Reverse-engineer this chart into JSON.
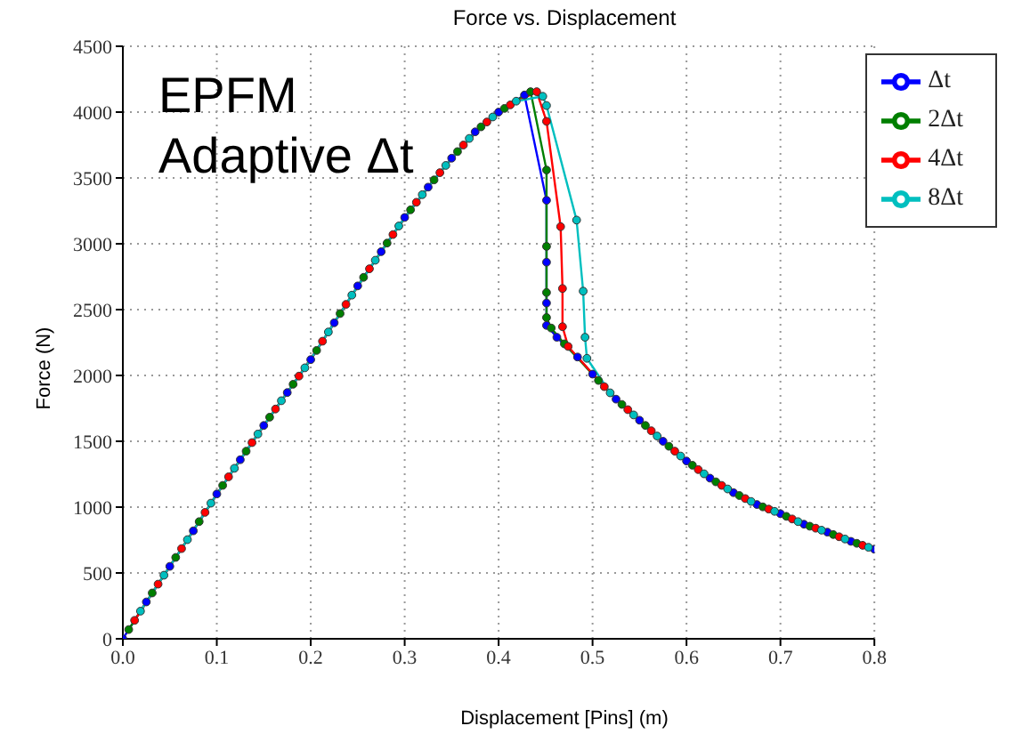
{
  "chart_data": {
    "type": "line",
    "title": "Force vs. Displacement",
    "xlabel": "Displacement [Pins] (m)",
    "ylabel": "Force (N)",
    "annotations": [
      "EPFM",
      "Adaptive Δt"
    ],
    "xlim": [
      0,
      0.8
    ],
    "xticks": [
      {
        "value": 0,
        "label": "0.0"
      },
      0.1,
      0.2,
      0.3,
      0.4,
      0.5,
      0.6,
      0.7,
      0.8
    ],
    "ylim": [
      0,
      4500
    ],
    "yticks": [
      0,
      500,
      1000,
      1500,
      2000,
      2500,
      3000,
      3500,
      4000,
      4500
    ],
    "grid": true,
    "legend": "top right",
    "marker": "circle",
    "line_style": "solid",
    "series": [
      {
        "name": "Δt",
        "color": "#0000ff",
        "x": [
          0,
          0.025,
          0.05,
          0.075,
          0.1,
          0.125,
          0.15,
          0.175,
          0.2,
          0.225,
          0.25,
          0.275,
          0.3,
          0.325,
          0.35,
          0.375,
          0.4,
          0.4275,
          0.451,
          0.451,
          0.451,
          0.451,
          0.462,
          0.484,
          0.5,
          0.525,
          0.55,
          0.575,
          0.6,
          0.625,
          0.65,
          0.675,
          0.7,
          0.725,
          0.75,
          0.775,
          0.8
        ],
        "values": [
          0,
          280,
          550,
          820,
          1100,
          1360,
          1620,
          1870,
          2120,
          2400,
          2680,
          2940,
          3200,
          3430,
          3650,
          3850,
          4000,
          4130,
          3330,
          2860,
          2550,
          2380,
          2290,
          2140,
          2010,
          1820,
          1660,
          1500,
          1350,
          1220,
          1110,
          1020,
          950,
          870,
          810,
          740,
          680
        ]
      },
      {
        "name": "2Δt",
        "color": "#007f00",
        "x": [
          0.00625,
          0.03125,
          0.05625,
          0.08125,
          0.10625,
          0.13125,
          0.15625,
          0.18125,
          0.20625,
          0.23125,
          0.25625,
          0.28125,
          0.30625,
          0.33125,
          0.35625,
          0.38125,
          0.40625,
          0.434,
          0.451,
          0.451,
          0.451,
          0.451,
          0.456,
          0.47,
          0.50625,
          0.53125,
          0.55625,
          0.58125,
          0.60625,
          0.63125,
          0.65625,
          0.68125,
          0.70625,
          0.73125,
          0.75625,
          0.78125
        ],
        "values": [
          70,
          348,
          618,
          890,
          1165,
          1425,
          1683,
          1933,
          2190,
          2470,
          2745,
          3005,
          3258,
          3485,
          3700,
          3888,
          4028,
          4155,
          3560,
          2980,
          2630,
          2440,
          2360,
          2240,
          1962,
          1780,
          1620,
          1462,
          1318,
          1192,
          1088,
          1002,
          930,
          855,
          792,
          725
        ]
      },
      {
        "name": "4Δt",
        "color": "#ff0000",
        "x": [
          0.0125,
          0.0375,
          0.0625,
          0.0875,
          0.1125,
          0.1375,
          0.1625,
          0.1875,
          0.2125,
          0.2375,
          0.2625,
          0.2875,
          0.3125,
          0.3375,
          0.3625,
          0.3875,
          0.4125,
          0.4405,
          0.451,
          0.466,
          0.468,
          0.468,
          0.474,
          0.5125,
          0.5375,
          0.5625,
          0.5875,
          0.6125,
          0.6375,
          0.6625,
          0.6875,
          0.7125,
          0.7375,
          0.7625,
          0.7875
        ],
        "values": [
          140,
          415,
          685,
          960,
          1230,
          1490,
          1745,
          1995,
          2260,
          2540,
          2810,
          3070,
          3315,
          3540,
          3750,
          3925,
          4055,
          4155,
          3930,
          3130,
          2660,
          2370,
          2220,
          1915,
          1740,
          1580,
          1425,
          1285,
          1165,
          1065,
          985,
          910,
          840,
          775,
          710
        ]
      },
      {
        "name": "8Δt",
        "color": "#00bfbf",
        "x": [
          0.01875,
          0.04375,
          0.06875,
          0.09375,
          0.11875,
          0.14375,
          0.16875,
          0.19375,
          0.21875,
          0.24375,
          0.26875,
          0.29375,
          0.31875,
          0.34375,
          0.36875,
          0.39375,
          0.41875,
          0.447,
          0.451,
          0.483,
          0.49,
          0.492,
          0.494,
          0.51875,
          0.54375,
          0.56875,
          0.59375,
          0.61875,
          0.64375,
          0.66875,
          0.69375,
          0.71875,
          0.74375,
          0.76875,
          0.79375
        ],
        "values": [
          210,
          483,
          753,
          1030,
          1295,
          1555,
          1808,
          2058,
          2330,
          2610,
          2875,
          3135,
          3373,
          3595,
          3800,
          3963,
          4083,
          4120,
          4050,
          3180,
          2640,
          2290,
          2130,
          1868,
          1700,
          1540,
          1388,
          1253,
          1138,
          1043,
          968,
          890,
          825,
          758,
          695
        ]
      }
    ]
  }
}
